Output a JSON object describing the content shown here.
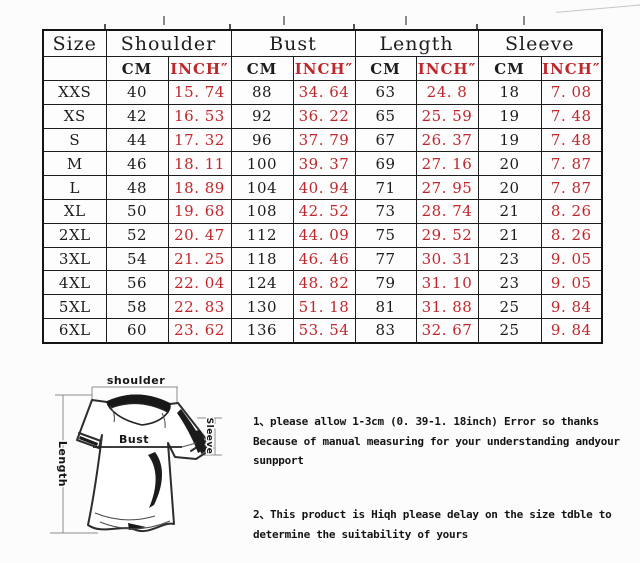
{
  "table": {
    "groups": [
      "Size",
      "Shoulder",
      "Bust",
      "Length",
      "Sleeve"
    ],
    "unit_cm": "CM",
    "unit_inch": "INCH″",
    "rows": [
      {
        "size": "XXS",
        "shoulder_cm": "40",
        "shoulder_inch": "15. 74",
        "bust_cm": "88",
        "bust_inch": "34. 64",
        "length_cm": "63",
        "length_inch": "24. 8",
        "sleeve_cm": "18",
        "sleeve_inch": "7. 08"
      },
      {
        "size": "XS",
        "shoulder_cm": "42",
        "shoulder_inch": "16. 53",
        "bust_cm": "92",
        "bust_inch": "36. 22",
        "length_cm": "65",
        "length_inch": "25. 59",
        "sleeve_cm": "19",
        "sleeve_inch": "7. 48"
      },
      {
        "size": "S",
        "shoulder_cm": "44",
        "shoulder_inch": "17. 32",
        "bust_cm": "96",
        "bust_inch": "37. 79",
        "length_cm": "67",
        "length_inch": "26. 37",
        "sleeve_cm": "19",
        "sleeve_inch": "7. 48"
      },
      {
        "size": "M",
        "shoulder_cm": "46",
        "shoulder_inch": "18. 11",
        "bust_cm": "100",
        "bust_inch": "39. 37",
        "length_cm": "69",
        "length_inch": "27. 16",
        "sleeve_cm": "20",
        "sleeve_inch": "7. 87"
      },
      {
        "size": "L",
        "shoulder_cm": "48",
        "shoulder_inch": "18. 89",
        "bust_cm": "104",
        "bust_inch": "40. 94",
        "length_cm": "71",
        "length_inch": "27. 95",
        "sleeve_cm": "20",
        "sleeve_inch": "7. 87"
      },
      {
        "size": "XL",
        "shoulder_cm": "50",
        "shoulder_inch": "19. 68",
        "bust_cm": "108",
        "bust_inch": "42. 52",
        "length_cm": "73",
        "length_inch": "28. 74",
        "sleeve_cm": "21",
        "sleeve_inch": "8. 26"
      },
      {
        "size": "2XL",
        "shoulder_cm": "52",
        "shoulder_inch": "20. 47",
        "bust_cm": "112",
        "bust_inch": "44. 09",
        "length_cm": "75",
        "length_inch": "29. 52",
        "sleeve_cm": "21",
        "sleeve_inch": "8. 26"
      },
      {
        "size": "3XL",
        "shoulder_cm": "54",
        "shoulder_inch": "21. 25",
        "bust_cm": "118",
        "bust_inch": "46. 46",
        "length_cm": "77",
        "length_inch": "30. 31",
        "sleeve_cm": "23",
        "sleeve_inch": "9. 05"
      },
      {
        "size": "4XL",
        "shoulder_cm": "56",
        "shoulder_inch": "22. 04",
        "bust_cm": "124",
        "bust_inch": "48. 82",
        "length_cm": "79",
        "length_inch": "31. 10",
        "sleeve_cm": "23",
        "sleeve_inch": "9. 05"
      },
      {
        "size": "5XL",
        "shoulder_cm": "58",
        "shoulder_inch": "22. 83",
        "bust_cm": "130",
        "bust_inch": "51. 18",
        "length_cm": "81",
        "length_inch": "31. 88",
        "sleeve_cm": "25",
        "sleeve_inch": "9. 84"
      },
      {
        "size": "6XL",
        "shoulder_cm": "60",
        "shoulder_inch": "23. 62",
        "bust_cm": "136",
        "bust_inch": "53. 54",
        "length_cm": "83",
        "length_inch": "32. 67",
        "sleeve_cm": "25",
        "sleeve_inch": "9. 84"
      }
    ]
  },
  "diagram": {
    "shoulder_label": "shoulder",
    "bust_label": "Bust",
    "length_label": "Length",
    "sleeve_label": "Sleeve"
  },
  "notes": {
    "note1_lines": [
      "1、please allow 1-3cm (0. 39-1. 18inch) Error so thanks",
      "Because of manual measuring for your understanding andyour",
      "sunpport"
    ],
    "note2_lines": [
      "2、This product is Hiqh please delay on the size tdble to",
      "determine the suitability of yours"
    ]
  },
  "colors": {
    "inch_red": "#c0272c",
    "text_black": "#1c1c1c",
    "background": "#fcfcfc"
  }
}
